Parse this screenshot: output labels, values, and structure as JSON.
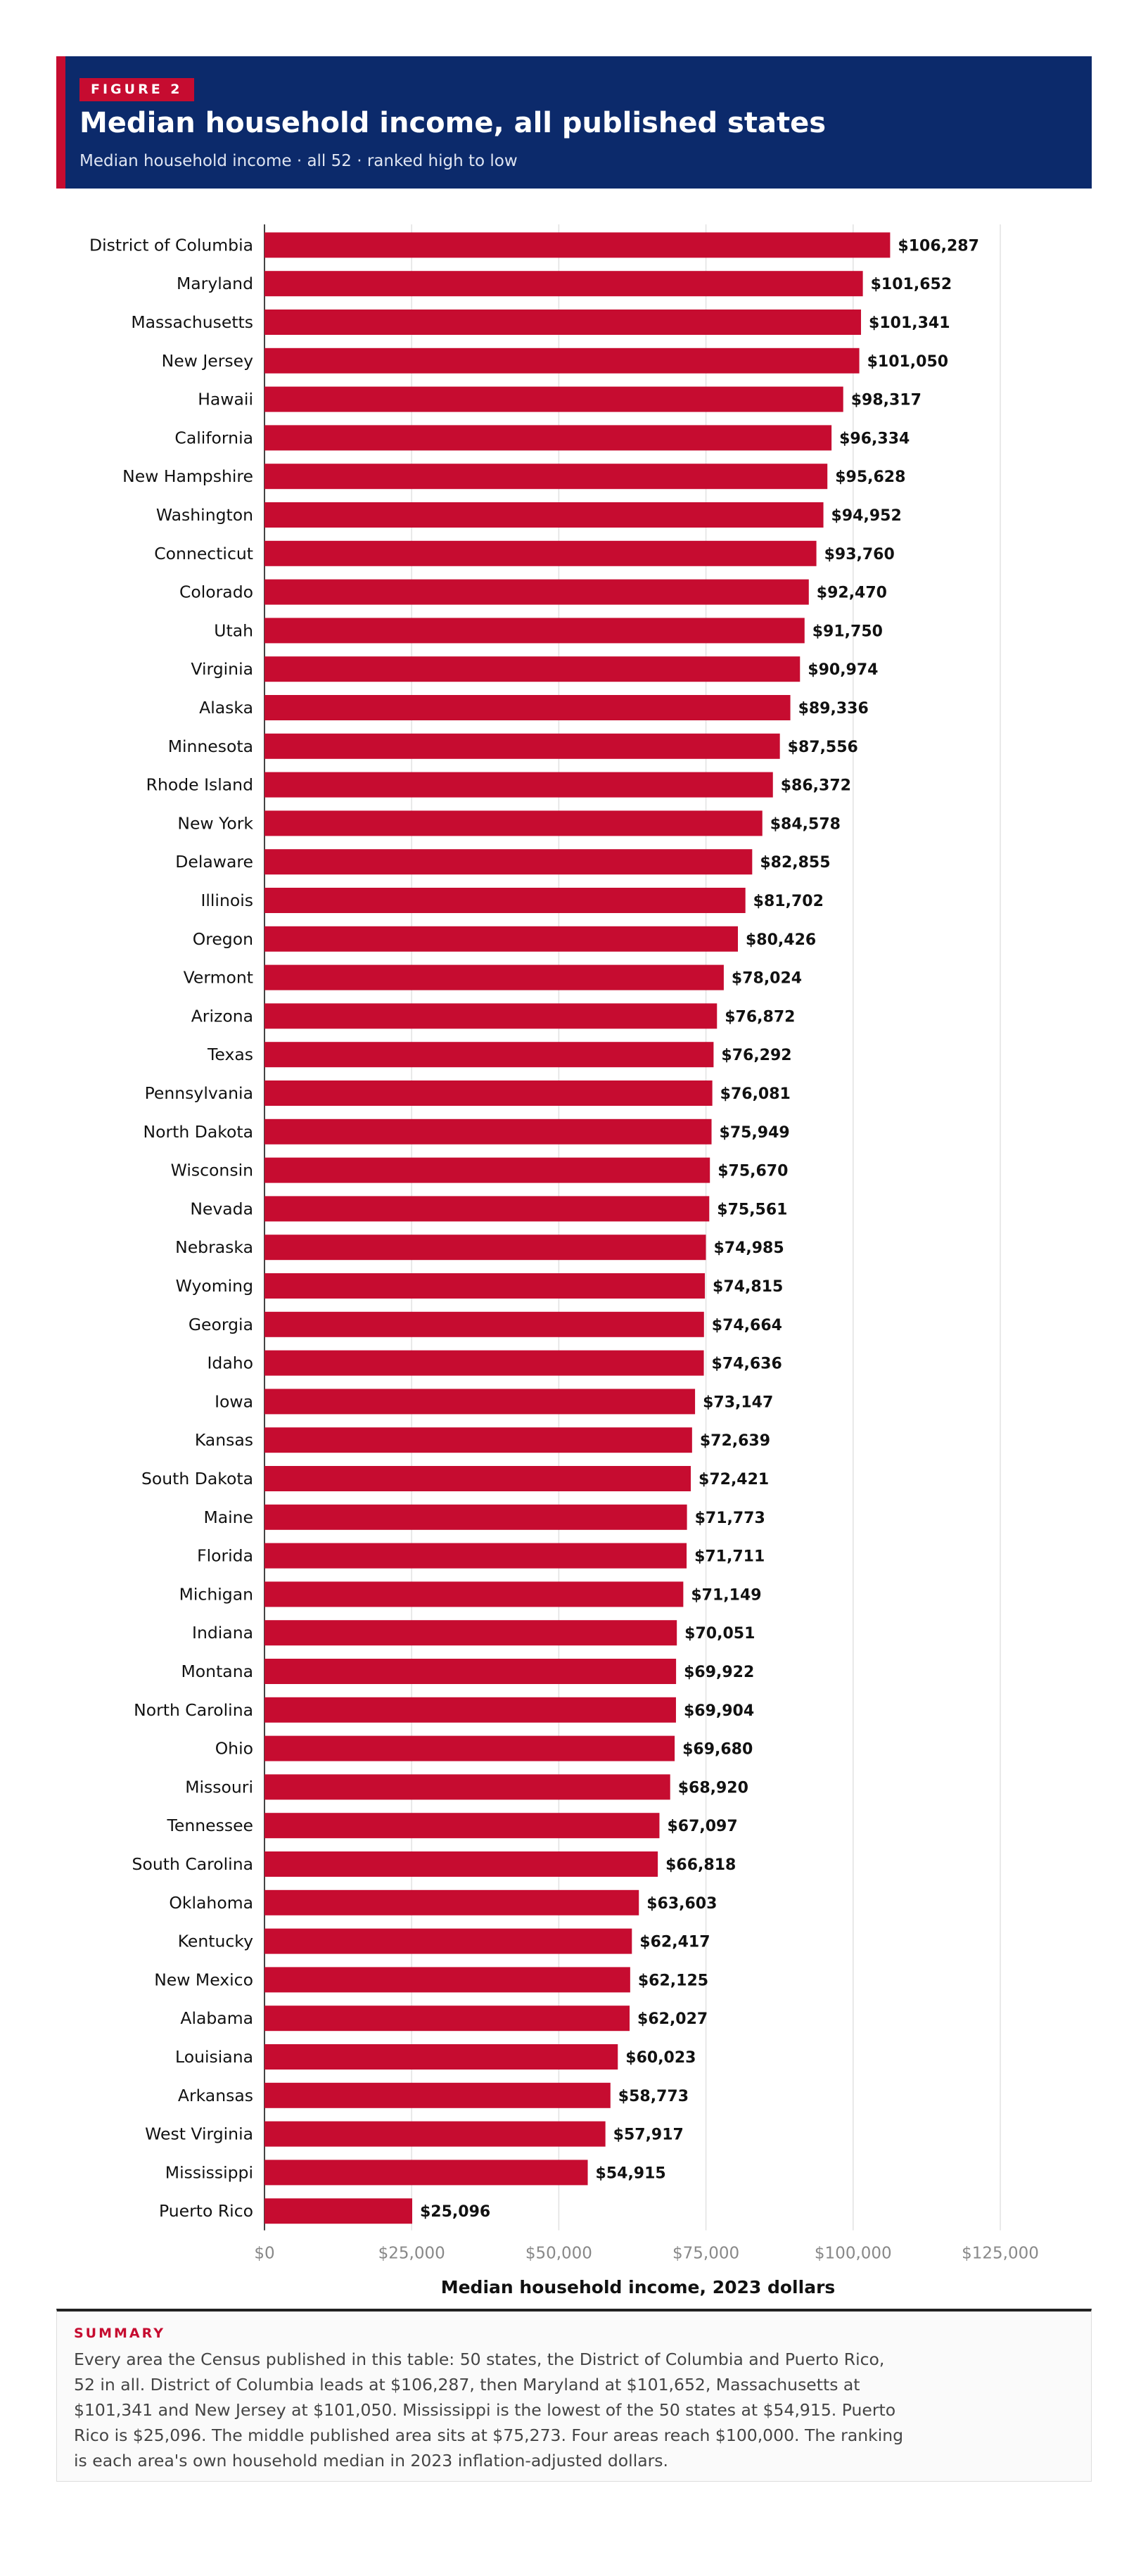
{
  "header": {
    "kicker": "FIGURE 2",
    "title": "Median household income, all published states",
    "subtitle": "Median household income · all 52 · ranked high to low"
  },
  "colors": {
    "bar": "#c60c30",
    "header_bg": "#0c2a6b",
    "accent": "#c60c30"
  },
  "chart_data": {
    "type": "bar",
    "orientation": "horizontal",
    "xlabel": "Median household income, 2023 dollars",
    "xlim": [
      0,
      125000
    ],
    "xticks": [
      "$0",
      "$25,000",
      "$50,000",
      "$75,000",
      "$100,000",
      "$125,000"
    ],
    "grid": true,
    "categories": [
      "District of Columbia",
      "Maryland",
      "Massachusetts",
      "New Jersey",
      "Hawaii",
      "California",
      "New Hampshire",
      "Washington",
      "Connecticut",
      "Colorado",
      "Utah",
      "Virginia",
      "Alaska",
      "Minnesota",
      "Rhode Island",
      "New York",
      "Delaware",
      "Illinois",
      "Oregon",
      "Vermont",
      "Arizona",
      "Texas",
      "Pennsylvania",
      "North Dakota",
      "Wisconsin",
      "Nevada",
      "Nebraska",
      "Wyoming",
      "Georgia",
      "Idaho",
      "Iowa",
      "Kansas",
      "South Dakota",
      "Maine",
      "Florida",
      "Michigan",
      "Indiana",
      "Montana",
      "North Carolina",
      "Ohio",
      "Missouri",
      "Tennessee",
      "South Carolina",
      "Oklahoma",
      "Kentucky",
      "New Mexico",
      "Alabama",
      "Louisiana",
      "Arkansas",
      "West Virginia",
      "Mississippi",
      "Puerto Rico"
    ],
    "values": [
      106287,
      101652,
      101341,
      101050,
      98317,
      96334,
      95628,
      94952,
      93760,
      92470,
      91750,
      90974,
      89336,
      87556,
      86372,
      84578,
      82855,
      81702,
      80426,
      78024,
      76872,
      76292,
      76081,
      75949,
      75670,
      75561,
      74985,
      74815,
      74664,
      74636,
      73147,
      72639,
      72421,
      71773,
      71711,
      71149,
      70051,
      69922,
      69904,
      69680,
      68920,
      67097,
      66818,
      63603,
      62417,
      62125,
      62027,
      60023,
      58773,
      57917,
      54915,
      25096
    ],
    "value_labels": [
      "$106,287",
      "$101,652",
      "$101,341",
      "$101,050",
      "$98,317",
      "$96,334",
      "$95,628",
      "$94,952",
      "$93,760",
      "$92,470",
      "$91,750",
      "$90,974",
      "$89,336",
      "$87,556",
      "$86,372",
      "$84,578",
      "$82,855",
      "$81,702",
      "$80,426",
      "$78,024",
      "$76,872",
      "$76,292",
      "$76,081",
      "$75,949",
      "$75,670",
      "$75,561",
      "$74,985",
      "$74,815",
      "$74,664",
      "$74,636",
      "$73,147",
      "$72,639",
      "$72,421",
      "$71,773",
      "$71,711",
      "$71,149",
      "$70,051",
      "$69,922",
      "$69,904",
      "$69,680",
      "$68,920",
      "$67,097",
      "$66,818",
      "$63,603",
      "$62,417",
      "$62,125",
      "$62,027",
      "$60,023",
      "$58,773",
      "$57,917",
      "$54,915",
      "$25,096"
    ]
  },
  "summary": {
    "heading": "SUMMARY",
    "text": "Every area the Census published in this table: 50 states, the District of Columbia and Puerto Rico, 52 in all. District of Columbia leads at $106,287, then Maryland at $101,652, Massachusetts at $101,341 and New Jersey at $101,050. Mississippi is the lowest of the 50 states at $54,915. Puerto Rico is $25,096. The middle published area sits at $75,273. Four areas reach $100,000. The ranking is each area's own household median in 2023 inflation-adjusted dollars."
  }
}
